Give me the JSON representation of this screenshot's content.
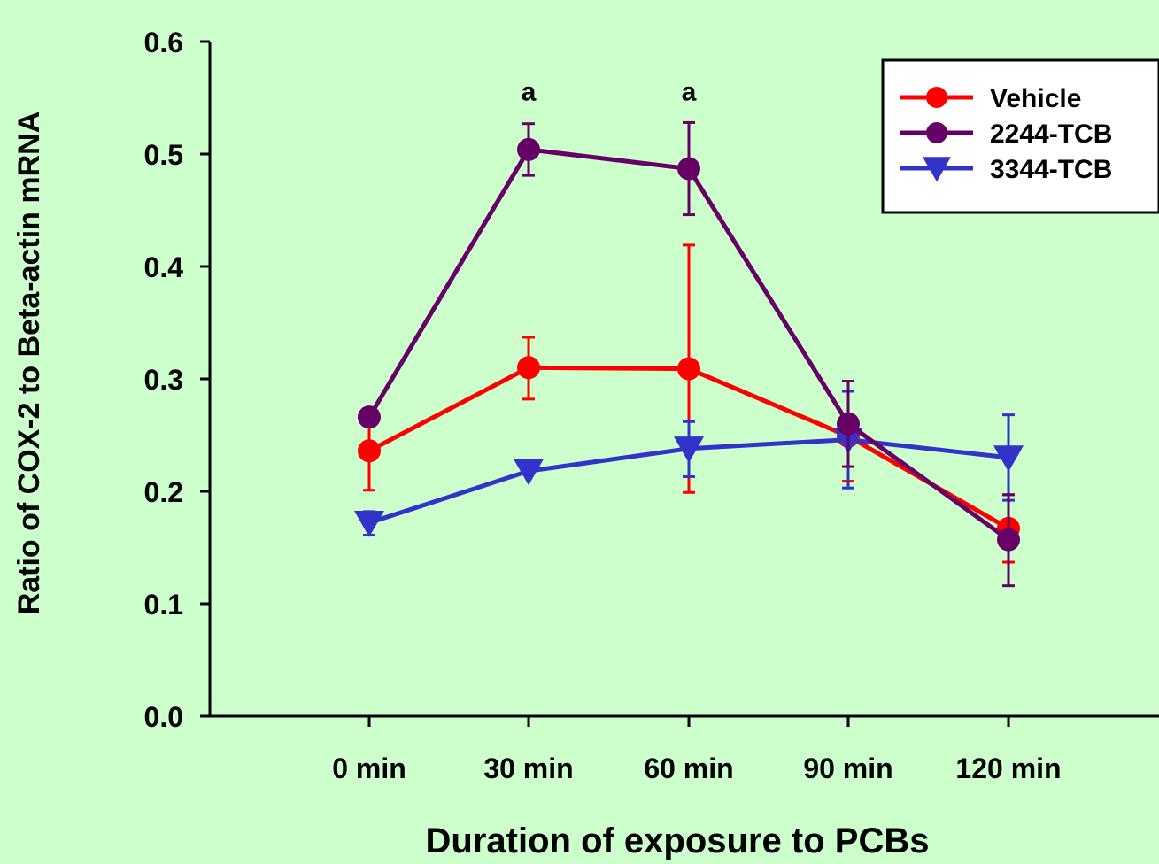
{
  "chart_data": {
    "type": "line",
    "title": "",
    "xlabel": "Duration of exposure to PCBs",
    "ylabel": "Ratio of COX-2 to Beta-actin mRNA",
    "categories": [
      "0 min",
      "30 min",
      "60 min",
      "90 min",
      "120 min"
    ],
    "ylim": [
      0,
      0.6
    ],
    "yticks": [
      "0.0",
      "0.1",
      "0.2",
      "0.3",
      "0.4",
      "0.5",
      "0.6"
    ],
    "grid": false,
    "legend_position": "top-right",
    "series": [
      {
        "name": "Vehicle",
        "color": "#ff0000",
        "marker": "circle",
        "values": [
          0.236,
          0.31,
          0.309,
          0.249,
          0.167
        ],
        "err_upper": [
          0.27,
          0.337,
          0.419,
          0.289,
          0.197
        ],
        "err_lower": [
          0.201,
          0.282,
          0.199,
          0.209,
          0.137
        ]
      },
      {
        "name": "2244-TCB",
        "color": "#660066",
        "marker": "circle",
        "values": [
          0.266,
          0.504,
          0.487,
          0.26,
          0.157
        ],
        "err_upper": [
          0.266,
          0.527,
          0.528,
          0.298,
          0.197
        ],
        "err_lower": [
          0.266,
          0.481,
          0.446,
          0.222,
          0.116
        ]
      },
      {
        "name": "3344-TCB",
        "color": "#3333cc",
        "marker": "triangle-down",
        "values": [
          0.172,
          0.218,
          0.238,
          0.246,
          0.23
        ],
        "err_upper": [
          0.182,
          0.218,
          0.262,
          0.289,
          0.268
        ],
        "err_lower": [
          0.161,
          0.218,
          0.213,
          0.203,
          0.192
        ]
      }
    ],
    "annotations": [
      {
        "text": "a",
        "category": "30 min",
        "y": 0.55
      },
      {
        "text": "a",
        "category": "60 min",
        "y": 0.55
      }
    ]
  }
}
